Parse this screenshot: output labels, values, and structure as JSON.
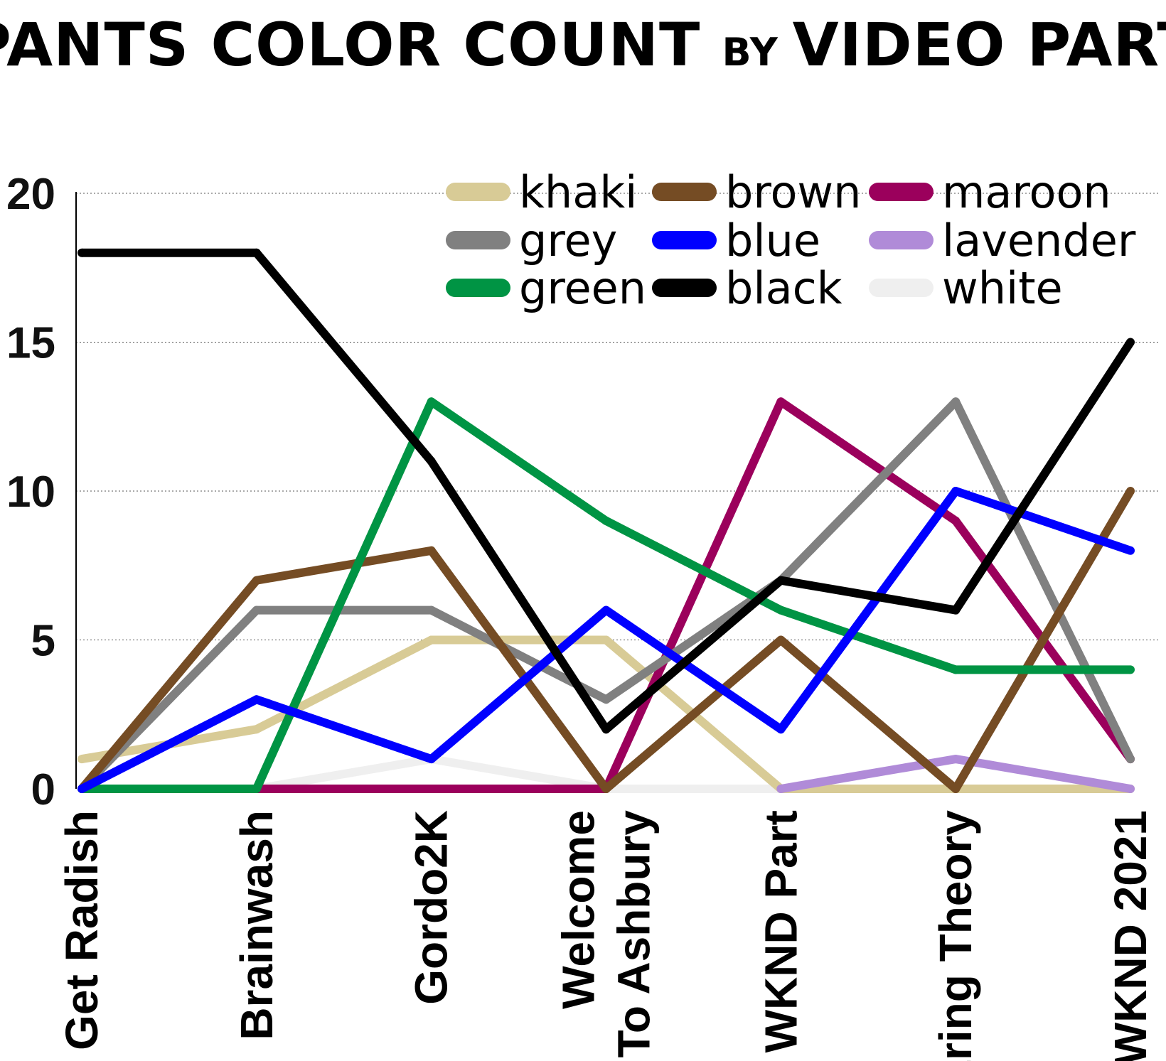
{
  "chart_data": {
    "type": "line",
    "title_part1": "PANTS COLOR COUNT ",
    "title_part2": "BY ",
    "title_part3": "VIDEO PART",
    "categories": [
      [
        "Get Radish"
      ],
      [
        "Brainwash"
      ],
      [
        "Gordo2K"
      ],
      [
        "Welcome",
        "To Ashbury"
      ],
      [
        "WKND Part"
      ],
      [
        "String Theory"
      ],
      [
        "WKND 2021"
      ]
    ],
    "yticks": [
      0,
      5,
      10,
      15,
      20
    ],
    "ylim": [
      0,
      20
    ],
    "grid": true,
    "legend_position": "top-right",
    "series": [
      {
        "name": "white",
        "color": "#efefef",
        "values": [
          0,
          0,
          1,
          0,
          0,
          0,
          0
        ]
      },
      {
        "name": "khaki",
        "color": "#d8cb96",
        "values": [
          1,
          2,
          5,
          5,
          0,
          0,
          0
        ]
      },
      {
        "name": "lavender",
        "color": "#b08bd8",
        "values": [
          null,
          null,
          null,
          null,
          0,
          1,
          0
        ]
      },
      {
        "name": "maroon",
        "color": "#9b005c",
        "values": [
          null,
          0,
          0,
          0,
          13,
          9,
          1
        ]
      },
      {
        "name": "grey",
        "color": "#808080",
        "values": [
          0,
          6,
          6,
          3,
          7,
          13,
          1
        ]
      },
      {
        "name": "brown",
        "color": "#754c24",
        "values": [
          0,
          7,
          8,
          0,
          5,
          0,
          10
        ]
      },
      {
        "name": "green",
        "color": "#009444",
        "values": [
          0,
          0,
          13,
          9,
          6,
          4,
          4
        ]
      },
      {
        "name": "blue",
        "color": "#0000ff",
        "values": [
          0,
          3,
          1,
          6,
          2,
          10,
          8
        ]
      },
      {
        "name": "black",
        "color": "#000000",
        "values": [
          18,
          18,
          11,
          2,
          7,
          6,
          15
        ]
      }
    ],
    "legend": [
      {
        "name": "khaki",
        "color": "#d8cb96"
      },
      {
        "name": "grey",
        "color": "#808080"
      },
      {
        "name": "green",
        "color": "#009444"
      },
      {
        "name": "brown",
        "color": "#754c24"
      },
      {
        "name": "blue",
        "color": "#0000ff"
      },
      {
        "name": "black",
        "color": "#000000"
      },
      {
        "name": "maroon",
        "color": "#9b005c"
      },
      {
        "name": "lavender",
        "color": "#b08bd8"
      },
      {
        "name": "white",
        "color": "#efefef"
      }
    ]
  }
}
